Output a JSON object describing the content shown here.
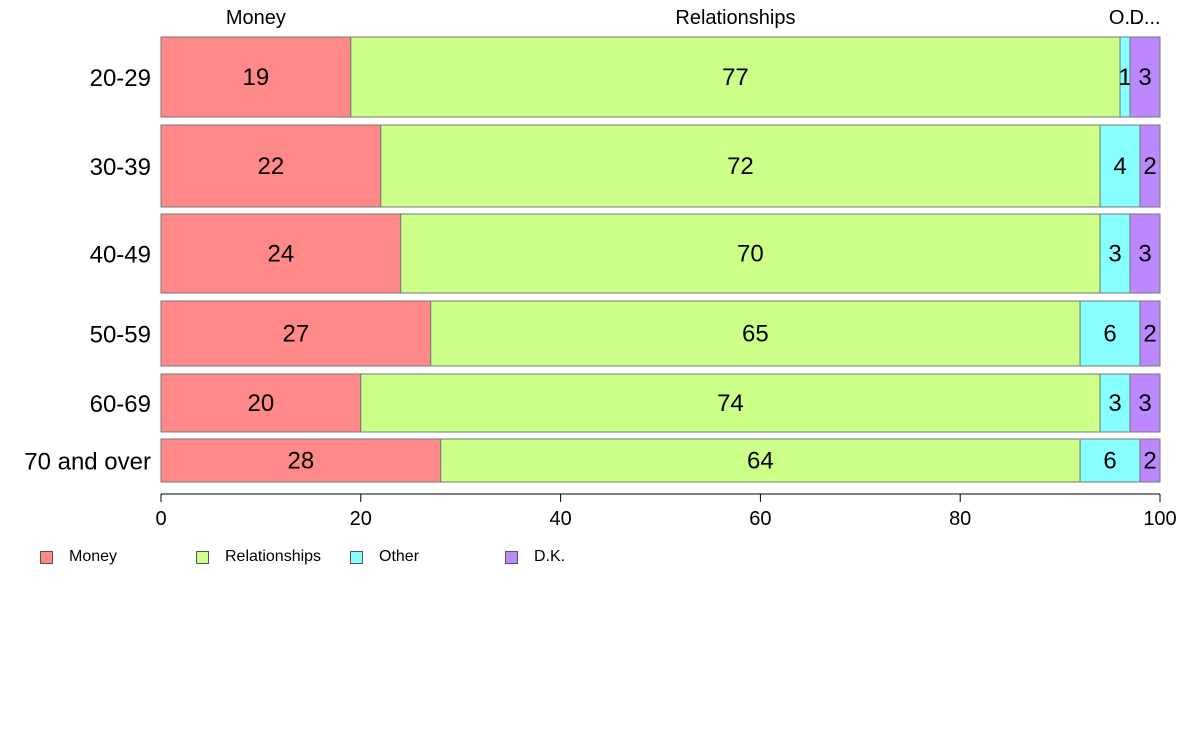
{
  "chart_data": {
    "type": "bar",
    "orientation": "horizontal",
    "stacked": true,
    "categories": [
      "20-29",
      "30-39",
      "40-49",
      "50-59",
      "60-69",
      "70 and over"
    ],
    "series": [
      {
        "name": "Money",
        "color": "#ff8888",
        "values": [
          19,
          22,
          24,
          27,
          20,
          28
        ]
      },
      {
        "name": "Relationships",
        "color": "#ccff88",
        "values": [
          77,
          72,
          70,
          65,
          74,
          64
        ]
      },
      {
        "name": "Other",
        "color": "#88ffff",
        "values": [
          1,
          4,
          3,
          6,
          3,
          6
        ]
      },
      {
        "name": "D.K.",
        "color": "#bb88ff",
        "values": [
          3,
          2,
          3,
          2,
          3,
          2
        ]
      }
    ],
    "top_labels": [
      "Money",
      "Relationships",
      "O...",
      "D..."
    ],
    "xlim": [
      0,
      100
    ],
    "xticks": [
      0,
      20,
      40,
      60,
      80,
      100
    ],
    "legend_position": "bottom-left",
    "grid": false
  },
  "legend": {
    "items": [
      {
        "label": "Money",
        "color": "#ff8888"
      },
      {
        "label": "Relationships",
        "color": "#ccff88"
      },
      {
        "label": "Other",
        "color": "#88ffff"
      },
      {
        "label": "D.K.",
        "color": "#bb88ff"
      }
    ]
  }
}
